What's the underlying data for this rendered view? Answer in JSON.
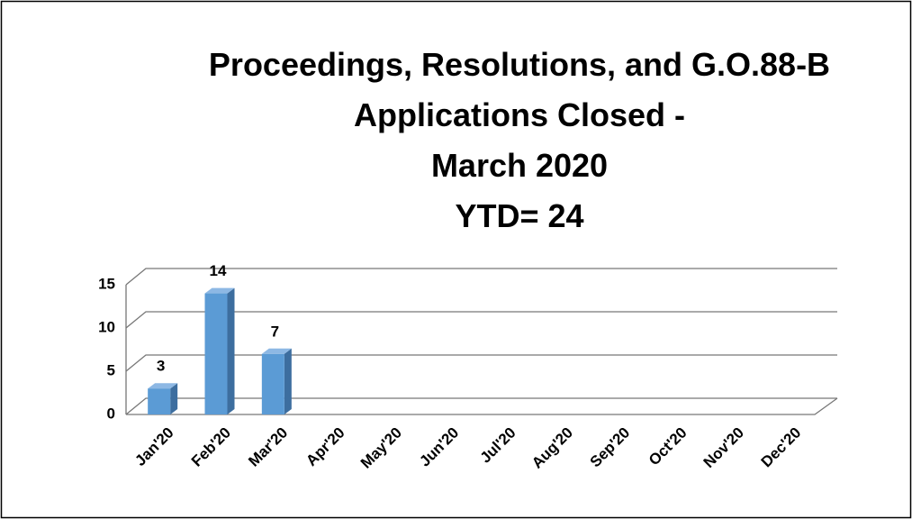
{
  "chart_data": {
    "type": "bar3d",
    "title": [
      "Proceedings, Resolutions, and G.O.88-B",
      "Applications Closed -",
      "March 2020",
      "YTD= 24"
    ],
    "categories": [
      "Jan'20",
      "Feb'20",
      "Mar'20",
      "Apr'20",
      "May'20",
      "Jun'20",
      "Jul'20",
      "Aug'20",
      "Sep'20",
      "Oct'20",
      "Nov'20",
      "Dec'20"
    ],
    "values": [
      3,
      14,
      7,
      null,
      null,
      null,
      null,
      null,
      null,
      null,
      null,
      null
    ],
    "color": "#5b9bd5",
    "ylim": [
      0,
      15
    ],
    "yticks": [
      0,
      5,
      10,
      15
    ],
    "grid": true
  }
}
